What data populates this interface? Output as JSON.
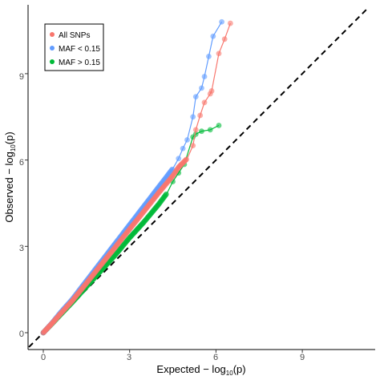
{
  "chart_data": {
    "type": "scatter",
    "title": "",
    "xlabel": {
      "prefix": "Expected − log",
      "subscript": "10",
      "suffix": "(p)"
    },
    "ylabel": {
      "prefix": "Observed − log",
      "subscript": "10",
      "suffix": "(p)"
    },
    "xlim": [
      -0.5,
      11.3
    ],
    "ylim": [
      -0.5,
      11.3
    ],
    "xticks": [
      0,
      3,
      6,
      9
    ],
    "yticks": [
      0,
      3,
      6,
      9
    ],
    "xtick_labels": [
      "0",
      "3",
      "6",
      "9"
    ],
    "ytick_labels": [
      "0",
      "3",
      "6",
      "9"
    ],
    "grid": false,
    "reference_line": {
      "style": "dashed",
      "color": "#000000",
      "from": [
        -0.5,
        -0.5
      ],
      "to": [
        11.3,
        11.3
      ]
    },
    "legend": {
      "placement": "top-left",
      "entries": [
        "All SNPs",
        "MAF < 0.15",
        "MAF > 0.15"
      ]
    },
    "series": [
      {
        "name": "All SNPs",
        "color": "#F8766D",
        "dense_until": 5.0,
        "points": [
          [
            0,
            0
          ],
          [
            0.3,
            0.32
          ],
          [
            0.6,
            0.66
          ],
          [
            1.0,
            1.1
          ],
          [
            1.5,
            1.72
          ],
          [
            2.0,
            2.35
          ],
          [
            2.5,
            2.97
          ],
          [
            3.0,
            3.6
          ],
          [
            3.5,
            4.22
          ],
          [
            4.0,
            4.85
          ],
          [
            4.5,
            5.45
          ],
          [
            4.7,
            5.75
          ],
          [
            5.0,
            6.05
          ],
          [
            5.2,
            6.5
          ],
          [
            5.3,
            7.05
          ],
          [
            5.45,
            7.55
          ],
          [
            5.6,
            8.0
          ],
          [
            5.8,
            8.3
          ],
          [
            5.85,
            8.4
          ],
          [
            6.1,
            9.7
          ],
          [
            6.3,
            10.2
          ],
          [
            6.5,
            10.75
          ]
        ]
      },
      {
        "name": "MAF < 0.15",
        "color": "#619CFF",
        "dense_until": 4.5,
        "points": [
          [
            0,
            0
          ],
          [
            0.3,
            0.33
          ],
          [
            0.6,
            0.7
          ],
          [
            1.0,
            1.15
          ],
          [
            1.5,
            1.8
          ],
          [
            2.0,
            2.45
          ],
          [
            2.5,
            3.1
          ],
          [
            3.0,
            3.75
          ],
          [
            3.5,
            4.4
          ],
          [
            4.0,
            5.05
          ],
          [
            4.5,
            5.7
          ],
          [
            4.7,
            6.05
          ],
          [
            4.85,
            6.4
          ],
          [
            5.0,
            6.7
          ],
          [
            5.2,
            7.5
          ],
          [
            5.3,
            8.2
          ],
          [
            5.5,
            8.5
          ],
          [
            5.6,
            8.9
          ],
          [
            5.75,
            9.6
          ],
          [
            5.9,
            10.3
          ],
          [
            6.2,
            10.8
          ]
        ]
      },
      {
        "name": "MAF > 0.15",
        "color": "#00BA38",
        "dense_until": 4.3,
        "points": [
          [
            0,
            0
          ],
          [
            0.3,
            0.31
          ],
          [
            0.6,
            0.63
          ],
          [
            1.0,
            1.05
          ],
          [
            1.5,
            1.6
          ],
          [
            2.0,
            2.15
          ],
          [
            2.5,
            2.7
          ],
          [
            3.0,
            3.3
          ],
          [
            3.5,
            3.85
          ],
          [
            4.0,
            4.45
          ],
          [
            4.3,
            4.85
          ],
          [
            4.5,
            5.25
          ],
          [
            4.7,
            5.55
          ],
          [
            4.9,
            5.85
          ],
          [
            5.2,
            6.8
          ],
          [
            5.3,
            6.9
          ],
          [
            5.5,
            7.0
          ],
          [
            5.8,
            7.05
          ],
          [
            6.1,
            7.2
          ]
        ]
      }
    ]
  }
}
